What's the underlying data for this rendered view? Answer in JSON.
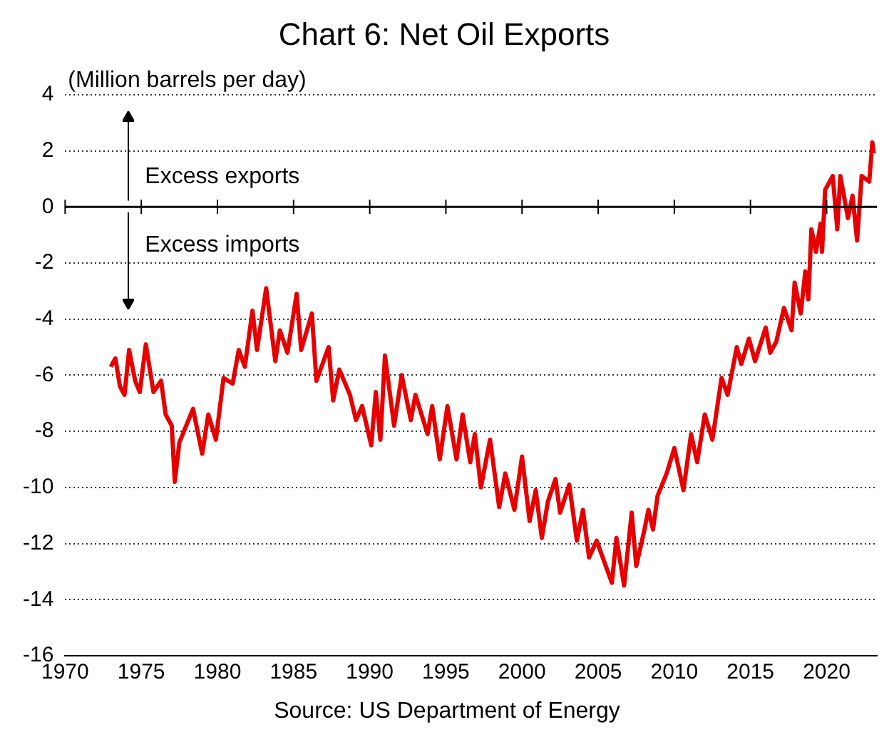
{
  "chart_data": {
    "type": "line",
    "title": "Chart 6: Net Oil Exports",
    "ylabel": "(Million barrels per day)",
    "annotations": [
      "Excess exports",
      "Excess imports",
      "Source: US Department of Energy"
    ],
    "x": [
      1973.0,
      1973.3,
      1973.6,
      1973.9,
      1974.2,
      1974.6,
      1974.9,
      1975.3,
      1975.8,
      1976.3,
      1976.6,
      1977.0,
      1977.2,
      1977.5,
      1978.4,
      1979.0,
      1979.4,
      1979.9,
      1980.4,
      1981.0,
      1981.4,
      1981.8,
      1982.3,
      1982.6,
      1983.2,
      1983.8,
      1984.1,
      1984.6,
      1985.2,
      1985.5,
      1986.2,
      1986.5,
      1987.3,
      1987.6,
      1988.0,
      1988.7,
      1989.1,
      1989.5,
      1990.1,
      1990.4,
      1990.7,
      1991.0,
      1991.6,
      1992.1,
      1992.7,
      1993.0,
      1993.8,
      1994.1,
      1994.6,
      1995.1,
      1995.7,
      1996.1,
      1996.6,
      1996.9,
      1997.3,
      1997.9,
      1998.5,
      1998.9,
      1999.5,
      2000.0,
      2000.5,
      2000.9,
      2001.3,
      2001.7,
      2002.2,
      2002.5,
      2003.1,
      2003.6,
      2004.0,
      2004.4,
      2004.9,
      2005.3,
      2005.9,
      2006.2,
      2006.7,
      2007.2,
      2007.5,
      2008.0,
      2008.3,
      2008.6,
      2008.9,
      2009.5,
      2010.0,
      2010.6,
      2011.1,
      2011.5,
      2012.0,
      2012.5,
      2013.1,
      2013.5,
      2014.1,
      2014.4,
      2014.9,
      2015.3,
      2016.0,
      2016.3,
      2016.7,
      2017.2,
      2017.7,
      2017.9,
      2018.3,
      2018.6,
      2018.8,
      2019.0,
      2019.3,
      2019.6,
      2019.7,
      2019.9,
      2020.4,
      2020.7,
      2020.9,
      2021.4,
      2021.7,
      2022.0,
      2022.3,
      2022.8,
      2023.0,
      2023.1
    ],
    "series": [
      {
        "color": "#e60000",
        "values": [
          -5.7,
          -5.4,
          -6.4,
          -6.7,
          -5.1,
          -6.2,
          -6.6,
          -4.9,
          -6.6,
          -6.2,
          -7.4,
          -7.8,
          -9.8,
          -8.4,
          -7.2,
          -8.8,
          -7.4,
          -8.3,
          -6.1,
          -6.3,
          -5.1,
          -5.7,
          -3.7,
          -5.1,
          -2.9,
          -5.5,
          -4.4,
          -5.2,
          -3.1,
          -5.1,
          -3.8,
          -6.2,
          -5.0,
          -6.9,
          -5.8,
          -6.7,
          -7.6,
          -7.1,
          -8.5,
          -6.6,
          -8.3,
          -5.3,
          -7.8,
          -6.0,
          -7.6,
          -6.7,
          -8.1,
          -7.1,
          -9.0,
          -7.1,
          -9.0,
          -7.4,
          -9.1,
          -8.1,
          -10.0,
          -8.3,
          -10.7,
          -9.5,
          -10.8,
          -8.9,
          -11.2,
          -10.1,
          -11.8,
          -10.5,
          -9.7,
          -10.9,
          -9.9,
          -11.9,
          -10.8,
          -12.5,
          -11.9,
          -12.5,
          -13.4,
          -11.8,
          -13.5,
          -10.9,
          -12.8,
          -11.6,
          -10.8,
          -11.5,
          -10.3,
          -9.5,
          -8.6,
          -10.1,
          -8.1,
          -9.1,
          -7.4,
          -8.3,
          -6.1,
          -6.7,
          -5.0,
          -5.6,
          -4.7,
          -5.5,
          -4.3,
          -5.2,
          -4.8,
          -3.6,
          -4.4,
          -2.7,
          -3.8,
          -2.3,
          -3.3,
          -0.8,
          -1.6,
          -0.6,
          -1.6,
          0.6,
          1.1,
          -0.8,
          1.1,
          -0.4,
          0.4,
          -1.2,
          1.1,
          0.9,
          2.3,
          1.9
        ]
      }
    ],
    "xlim": [
      1970,
      2023.3
    ],
    "xticks": [
      1970,
      1975,
      1980,
      1985,
      1990,
      1995,
      2000,
      2005,
      2010,
      2015,
      2020
    ],
    "ylim": [
      -16,
      4
    ],
    "yticks": [
      -16,
      -14,
      -12,
      -10,
      -8,
      -6,
      -4,
      -2,
      0,
      2,
      4
    ],
    "grid": "y",
    "legend": false,
    "marker": "none",
    "line_style": "solid"
  }
}
